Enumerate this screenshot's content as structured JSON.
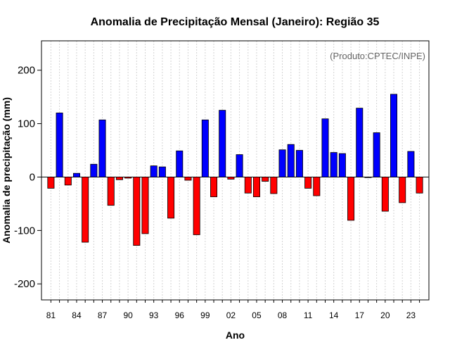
{
  "chart_data": {
    "type": "bar",
    "title": "Anomalia de Precipitação Mensal (Janeiro): Região 35",
    "credit": "(Produto:CPTEC/INPE)",
    "xlabel": "Ano",
    "ylabel": "Anomalia de precipitação (mm)",
    "ylim": [
      -230,
      255
    ],
    "yticks": [
      -200,
      -100,
      0,
      100,
      200
    ],
    "ytick_labels": [
      "-200",
      "-100",
      "0",
      "100",
      "200"
    ],
    "x_positions": [
      1981,
      1982,
      1983,
      1984,
      1985,
      1986,
      1987,
      1988,
      1989,
      1990,
      1991,
      1992,
      1993,
      1994,
      1995,
      1996,
      1997,
      1998,
      1999,
      2000,
      2001,
      2002,
      2003,
      2004,
      2005,
      2006,
      2007,
      2008,
      2009,
      2010,
      2011,
      2012,
      2013,
      2014,
      2015,
      2016,
      2017,
      2018,
      2019,
      2020,
      2021,
      2022,
      2023,
      2024
    ],
    "xlim": [
      1979.9,
      2025.1
    ],
    "xticks": [
      1981,
      1984,
      1987,
      1990,
      1993,
      1996,
      1999,
      2002,
      2005,
      2008,
      2011,
      2014,
      2017,
      2020,
      2023
    ],
    "xtick_labels": [
      "81",
      "84",
      "87",
      "90",
      "93",
      "96",
      "99",
      "02",
      "05",
      "08",
      "11",
      "14",
      "17",
      "20",
      "23"
    ],
    "values": [
      -21,
      120,
      -15,
      7,
      -122,
      24,
      107,
      -53,
      -5,
      -2,
      -128,
      -106,
      21,
      19,
      -77,
      49,
      -6,
      -108,
      107,
      -37,
      125,
      -4,
      42,
      -30,
      -37,
      -8,
      -31,
      51,
      61,
      50,
      -21,
      -35,
      109,
      46,
      44,
      -81,
      129,
      -1,
      83,
      -64,
      155,
      -48,
      48,
      -30
    ],
    "colors": {
      "positive": "#0000ff",
      "negative": "#ff0000",
      "grid": "#d3d3d3",
      "axis": "#000000"
    },
    "grid": true
  }
}
